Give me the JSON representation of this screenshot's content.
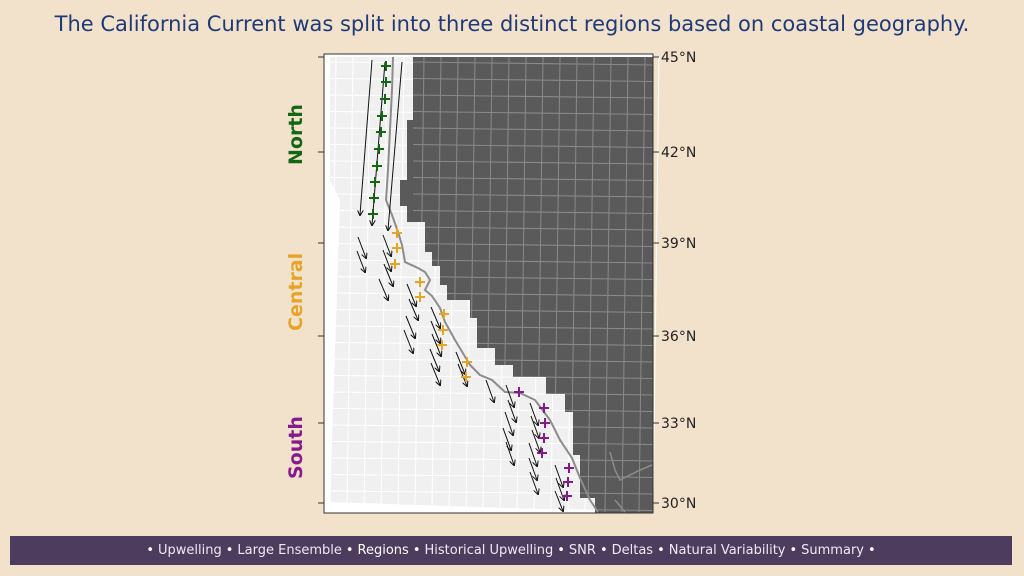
{
  "title": "The California Current was split into three distinct regions based on coastal geography.",
  "regions": [
    {
      "label": "North",
      "color": "#146614"
    },
    {
      "label": "Central",
      "color": "#e6a527"
    },
    {
      "label": "South",
      "color": "#86198c"
    }
  ],
  "lat_labels": [
    "45°N",
    "42°N",
    "39°N",
    "36°N",
    "33°N",
    "30°N"
  ],
  "colors": {
    "land": "#5a5a5a",
    "ocean": "#f0f0f0",
    "coast": "#8c8c8c",
    "arrow": "#111111",
    "grid": "#ffffff"
  },
  "nav": {
    "items": [
      "Upwelling",
      "Large Ensemble",
      "Regions",
      "Historical Upwelling",
      "SNR",
      "Deltas",
      "Natural Variability",
      "Summary"
    ],
    "active": "Regions",
    "bullet": "•"
  }
}
